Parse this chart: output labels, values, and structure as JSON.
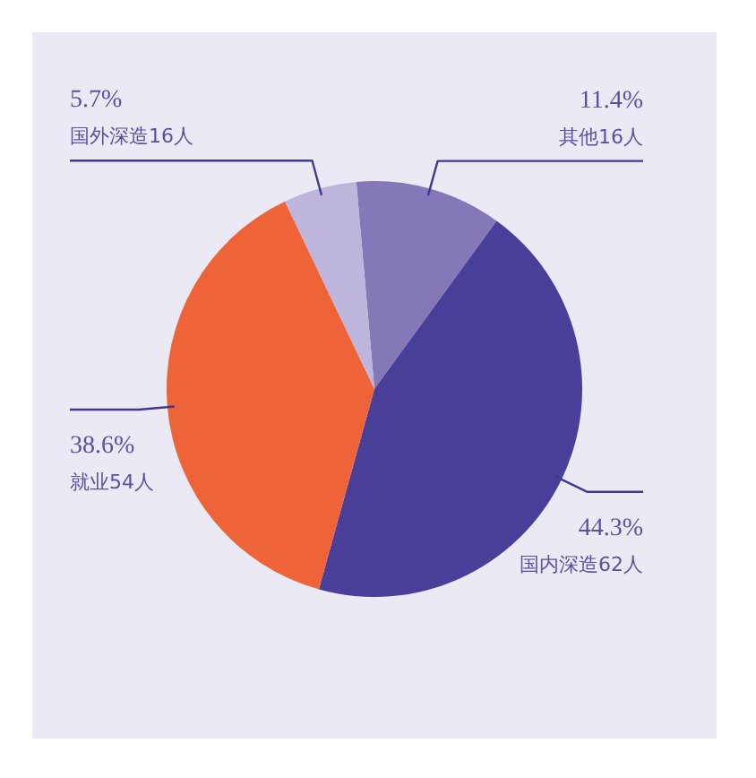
{
  "chart_data": {
    "type": "pie",
    "categories": [
      "其他16人",
      "国内深造62人",
      "就业54人",
      "国外深造16人"
    ],
    "values": [
      11.4,
      44.3,
      38.6,
      5.7
    ],
    "value_labels": [
      "11.4%",
      "44.3%",
      "38.6%",
      "5.7%"
    ],
    "colors": [
      "#8478b8",
      "#4a3f98",
      "#ee6438",
      "#bdb5dc"
    ],
    "legend": false
  }
}
